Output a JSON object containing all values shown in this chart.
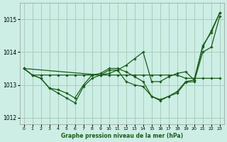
{
  "title": "Graphe pression niveau de la mer (hPa)",
  "bg_color": "#cceee4",
  "grid_color": "#aaccbb",
  "line_color": "#1a5c1a",
  "marker_color": "#1a5c1a",
  "xlim": [
    -0.5,
    23.5
  ],
  "ylim": [
    1011.8,
    1015.5
  ],
  "yticks": [
    1012,
    1013,
    1014,
    1015
  ],
  "xticks": [
    0,
    1,
    2,
    3,
    4,
    5,
    6,
    7,
    8,
    9,
    10,
    11,
    12,
    13,
    14,
    15,
    16,
    17,
    18,
    19,
    20,
    21,
    22,
    23
  ],
  "series": [
    {
      "x": [
        0,
        1,
        2,
        3,
        4,
        5,
        6,
        7,
        8,
        9,
        10,
        11,
        12,
        13,
        14,
        15,
        16,
        17,
        18,
        19,
        20,
        21,
        22,
        23
      ],
      "y": [
        1013.5,
        1013.3,
        1013.3,
        1013.3,
        1013.3,
        1013.3,
        1013.3,
        1013.3,
        1013.3,
        1013.3,
        1013.3,
        1013.3,
        1013.3,
        1013.3,
        1013.3,
        1013.3,
        1013.3,
        1013.3,
        1013.3,
        1013.2,
        1013.2,
        1013.2,
        1013.2,
        1013.2
      ]
    },
    {
      "x": [
        0,
        1,
        2,
        3,
        4,
        5,
        6,
        7,
        8,
        9,
        10,
        11,
        12,
        13,
        14,
        15,
        16,
        17,
        18,
        19,
        20,
        21,
        22,
        23
      ],
      "y": [
        1013.5,
        1013.3,
        1013.2,
        1012.9,
        1012.85,
        1012.75,
        1012.6,
        1013.0,
        1013.3,
        1013.35,
        1013.5,
        1013.5,
        1013.4,
        1013.25,
        1013.1,
        1012.65,
        1012.55,
        1012.65,
        1012.8,
        1013.1,
        1013.15,
        1014.2,
        1014.6,
        1015.2
      ]
    },
    {
      "x": [
        0,
        1,
        2,
        3,
        4,
        5,
        6,
        7,
        8,
        9,
        10,
        11,
        12,
        13,
        14,
        15,
        16,
        17,
        18,
        19,
        20,
        21,
        22,
        23
      ],
      "y": [
        1013.5,
        1013.3,
        1013.2,
        1012.9,
        1012.75,
        1012.6,
        1012.45,
        1012.95,
        1013.2,
        1013.3,
        1013.45,
        1013.45,
        1013.1,
        1013.0,
        1012.95,
        1012.65,
        1012.52,
        1012.65,
        1012.75,
        1013.08,
        1013.1,
        1014.0,
        1014.15,
        1015.1
      ]
    },
    {
      "x": [
        0,
        9,
        10,
        11,
        12,
        13,
        14,
        15,
        16,
        17,
        18,
        19,
        20,
        21,
        22,
        23
      ],
      "y": [
        1013.5,
        1013.3,
        1013.35,
        1013.45,
        1013.6,
        1013.8,
        1014.0,
        1013.1,
        1013.1,
        1013.25,
        1013.35,
        1013.4,
        1013.15,
        1014.15,
        1014.65,
        1015.2
      ]
    }
  ]
}
